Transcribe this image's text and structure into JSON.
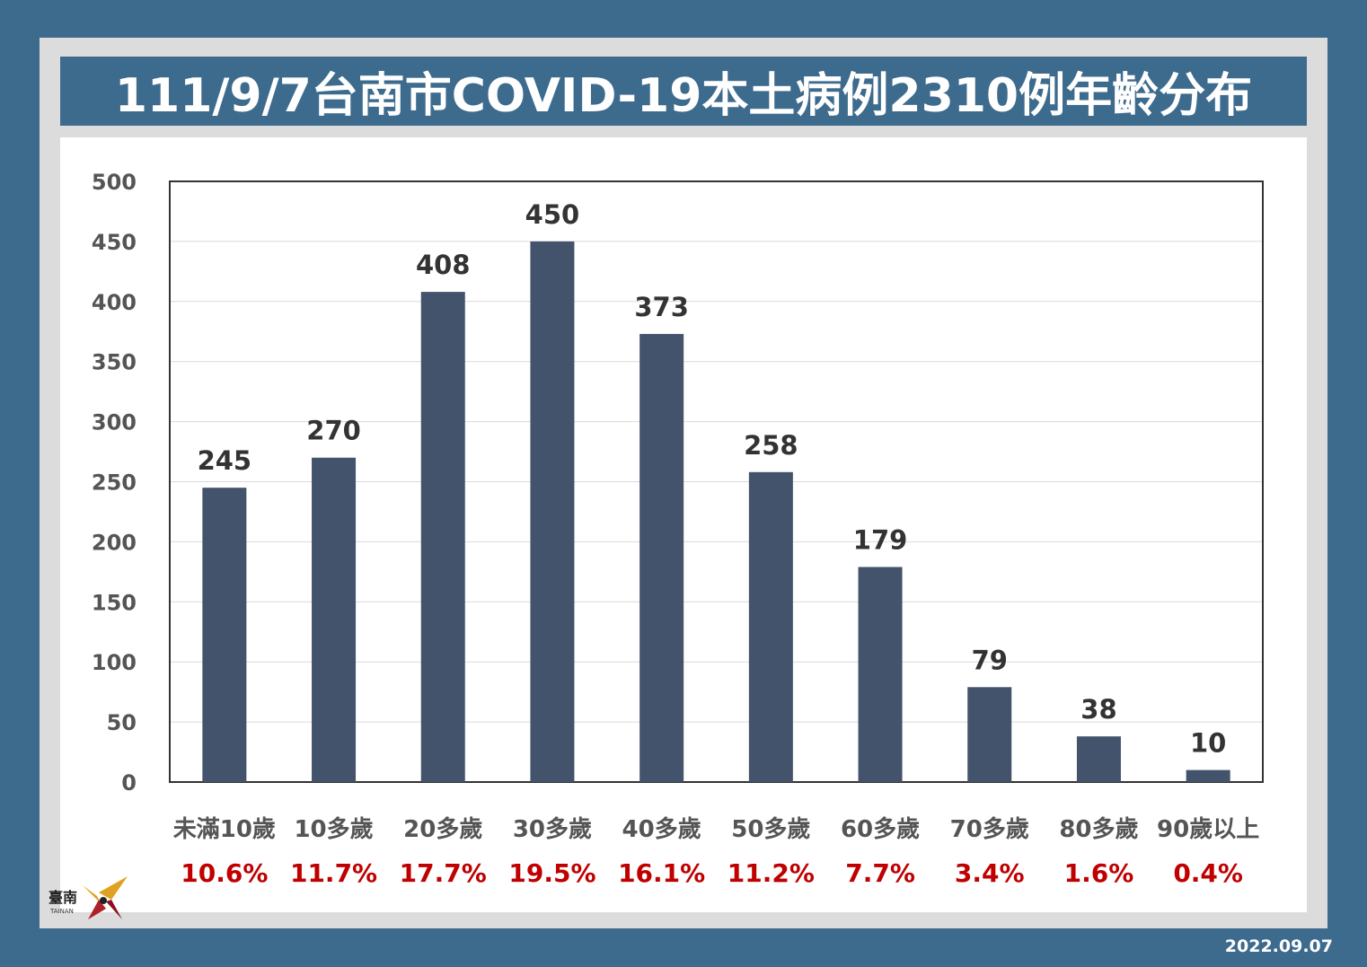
{
  "title": "111/9/7台南市COVID-19本土病例2310例年齡分布",
  "date": "2022.09.07",
  "logo": {
    "text": "臺南",
    "sub": "TAINAN"
  },
  "colors": {
    "background": "#3d6b8e",
    "bar": "#43536b",
    "percent": "#c00000",
    "axis_text": "#555555",
    "value_text": "#333333"
  },
  "chart_data": {
    "type": "bar",
    "categories": [
      "未滿10歲",
      "10多歲",
      "20多歲",
      "30多歲",
      "40多歲",
      "50多歲",
      "60多歲",
      "70多歲",
      "80多歲",
      "90歲以上"
    ],
    "values": [
      245,
      270,
      408,
      450,
      373,
      258,
      179,
      79,
      38,
      10
    ],
    "percentages": [
      "10.6%",
      "11.7%",
      "17.7%",
      "19.5%",
      "16.1%",
      "11.2%",
      "7.7%",
      "3.4%",
      "1.6%",
      "0.4%"
    ],
    "yticks": [
      0,
      50,
      100,
      150,
      200,
      250,
      300,
      350,
      400,
      450,
      500
    ],
    "ylim": [
      0,
      500
    ],
    "grid": true,
    "xlabel": "",
    "ylabel": ""
  }
}
